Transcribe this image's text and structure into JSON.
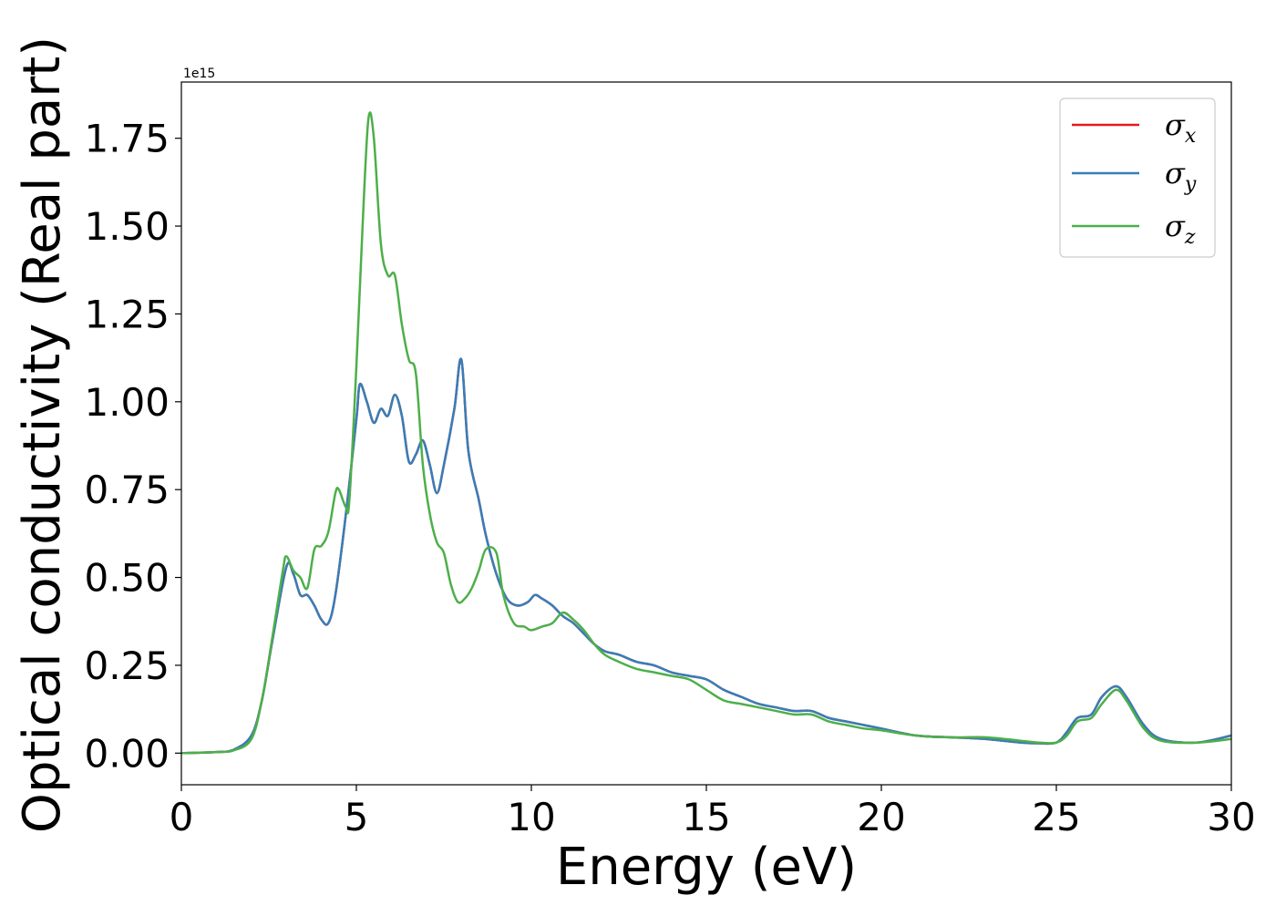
{
  "chart_data": {
    "type": "line",
    "xlabel": "Energy (eV)",
    "ylabel": "Optical conductivity (Real part)",
    "y_multiplier": "1e15",
    "xlim": [
      0,
      30
    ],
    "ylim": [
      -0.09,
      1.91
    ],
    "x_ticks": [
      "0",
      "5",
      "10",
      "15",
      "20",
      "25",
      "30"
    ],
    "y_ticks": [
      "0.00",
      "0.25",
      "0.50",
      "0.75",
      "1.00",
      "1.25",
      "1.50",
      "1.75"
    ],
    "grid": false,
    "legend_position": "upper right",
    "legend": [
      {
        "symbol": "σ",
        "sub": "x",
        "color": "#e41a1c"
      },
      {
        "symbol": "σ",
        "sub": "y",
        "color": "#377eb8"
      },
      {
        "symbol": "σ",
        "sub": "z",
        "color": "#4daf4a"
      }
    ],
    "series": [
      {
        "id": "sigma_x",
        "color": "#e41a1c",
        "x": [
          0,
          1,
          1.5,
          2,
          2.3,
          2.6,
          3.0,
          3.2,
          3.4,
          3.6,
          3.8,
          4.0,
          4.2,
          4.4,
          4.7,
          5.0,
          5.1,
          5.3,
          5.5,
          5.7,
          5.9,
          6.1,
          6.3,
          6.5,
          6.7,
          6.9,
          7.1,
          7.3,
          7.5,
          7.8,
          8.0,
          8.2,
          8.5,
          8.7,
          9.0,
          9.3,
          9.6,
          9.9,
          10.1,
          10.3,
          10.6,
          10.9,
          11.2,
          11.5,
          11.8,
          12.1,
          12.5,
          13.0,
          13.5,
          14.0,
          14.5,
          15.0,
          15.5,
          16.0,
          16.5,
          17.0,
          17.5,
          18.0,
          18.5,
          19.0,
          19.5,
          20.0,
          21.0,
          22.0,
          23.0,
          24.0,
          24.5,
          25.0,
          25.3,
          25.6,
          26.0,
          26.3,
          26.7,
          27.0,
          27.5,
          28.0,
          29.0,
          30.0
        ],
        "y": [
          0,
          0.003,
          0.01,
          0.05,
          0.15,
          0.32,
          0.53,
          0.51,
          0.45,
          0.45,
          0.42,
          0.38,
          0.37,
          0.45,
          0.68,
          0.95,
          1.05,
          1.0,
          0.94,
          0.98,
          0.96,
          1.02,
          0.96,
          0.83,
          0.85,
          0.89,
          0.82,
          0.74,
          0.82,
          0.98,
          1.12,
          0.86,
          0.72,
          0.62,
          0.51,
          0.44,
          0.42,
          0.43,
          0.45,
          0.44,
          0.42,
          0.39,
          0.37,
          0.34,
          0.31,
          0.29,
          0.28,
          0.26,
          0.25,
          0.23,
          0.22,
          0.21,
          0.18,
          0.16,
          0.14,
          0.13,
          0.12,
          0.12,
          0.1,
          0.09,
          0.08,
          0.07,
          0.05,
          0.045,
          0.04,
          0.03,
          0.028,
          0.03,
          0.06,
          0.1,
          0.11,
          0.16,
          0.19,
          0.16,
          0.08,
          0.04,
          0.03,
          0.05
        ]
      },
      {
        "id": "sigma_y",
        "color": "#377eb8",
        "x": [
          0,
          1,
          1.5,
          2,
          2.3,
          2.6,
          3.0,
          3.2,
          3.4,
          3.6,
          3.8,
          4.0,
          4.2,
          4.4,
          4.7,
          5.0,
          5.1,
          5.3,
          5.5,
          5.7,
          5.9,
          6.1,
          6.3,
          6.5,
          6.7,
          6.9,
          7.1,
          7.3,
          7.5,
          7.8,
          8.0,
          8.2,
          8.5,
          8.7,
          9.0,
          9.3,
          9.6,
          9.9,
          10.1,
          10.3,
          10.6,
          10.9,
          11.2,
          11.5,
          11.8,
          12.1,
          12.5,
          13.0,
          13.5,
          14.0,
          14.5,
          15.0,
          15.5,
          16.0,
          16.5,
          17.0,
          17.5,
          18.0,
          18.5,
          19.0,
          19.5,
          20.0,
          21.0,
          22.0,
          23.0,
          24.0,
          24.5,
          25.0,
          25.3,
          25.6,
          26.0,
          26.3,
          26.7,
          27.0,
          27.5,
          28.0,
          29.0,
          30.0
        ],
        "y": [
          0,
          0.003,
          0.01,
          0.05,
          0.15,
          0.32,
          0.53,
          0.51,
          0.45,
          0.45,
          0.42,
          0.38,
          0.37,
          0.45,
          0.68,
          0.95,
          1.05,
          1.0,
          0.94,
          0.98,
          0.96,
          1.02,
          0.96,
          0.83,
          0.85,
          0.89,
          0.82,
          0.74,
          0.82,
          0.98,
          1.12,
          0.86,
          0.72,
          0.62,
          0.51,
          0.44,
          0.42,
          0.43,
          0.45,
          0.44,
          0.42,
          0.39,
          0.37,
          0.34,
          0.31,
          0.29,
          0.28,
          0.26,
          0.25,
          0.23,
          0.22,
          0.21,
          0.18,
          0.16,
          0.14,
          0.13,
          0.12,
          0.12,
          0.1,
          0.09,
          0.08,
          0.07,
          0.05,
          0.045,
          0.04,
          0.03,
          0.028,
          0.03,
          0.06,
          0.1,
          0.11,
          0.16,
          0.19,
          0.16,
          0.08,
          0.04,
          0.03,
          0.05
        ]
      },
      {
        "id": "sigma_z",
        "color": "#4daf4a",
        "x": [
          0,
          1,
          1.5,
          2,
          2.3,
          2.6,
          2.9,
          3.0,
          3.2,
          3.4,
          3.6,
          3.8,
          4.0,
          4.2,
          4.4,
          4.5,
          4.7,
          4.8,
          5.0,
          5.2,
          5.35,
          5.5,
          5.7,
          5.9,
          6.1,
          6.3,
          6.5,
          6.7,
          6.9,
          7.1,
          7.3,
          7.5,
          7.7,
          7.9,
          8.1,
          8.3,
          8.5,
          8.7,
          9.0,
          9.2,
          9.5,
          9.8,
          10.0,
          10.3,
          10.6,
          10.9,
          11.2,
          11.5,
          11.8,
          12.1,
          12.5,
          13.0,
          13.5,
          14.0,
          14.5,
          15.0,
          15.5,
          16.0,
          16.5,
          17.0,
          17.5,
          18.0,
          18.5,
          19.0,
          19.5,
          20.0,
          21.0,
          22.0,
          23.0,
          24.0,
          24.5,
          25.0,
          25.3,
          25.6,
          26.0,
          26.3,
          26.7,
          27.0,
          27.5,
          28.0,
          29.0,
          30.0
        ],
        "y": [
          0,
          0.003,
          0.008,
          0.04,
          0.15,
          0.33,
          0.52,
          0.56,
          0.52,
          0.5,
          0.47,
          0.58,
          0.59,
          0.63,
          0.74,
          0.75,
          0.7,
          0.72,
          1.1,
          1.55,
          1.81,
          1.75,
          1.45,
          1.36,
          1.36,
          1.22,
          1.12,
          1.08,
          0.82,
          0.68,
          0.6,
          0.57,
          0.48,
          0.43,
          0.44,
          0.47,
          0.52,
          0.58,
          0.57,
          0.45,
          0.37,
          0.36,
          0.35,
          0.36,
          0.37,
          0.4,
          0.38,
          0.35,
          0.31,
          0.28,
          0.26,
          0.24,
          0.23,
          0.22,
          0.21,
          0.18,
          0.15,
          0.14,
          0.13,
          0.12,
          0.11,
          0.11,
          0.09,
          0.08,
          0.07,
          0.065,
          0.05,
          0.045,
          0.045,
          0.035,
          0.03,
          0.03,
          0.05,
          0.09,
          0.1,
          0.14,
          0.18,
          0.15,
          0.07,
          0.035,
          0.03,
          0.04
        ]
      }
    ]
  }
}
